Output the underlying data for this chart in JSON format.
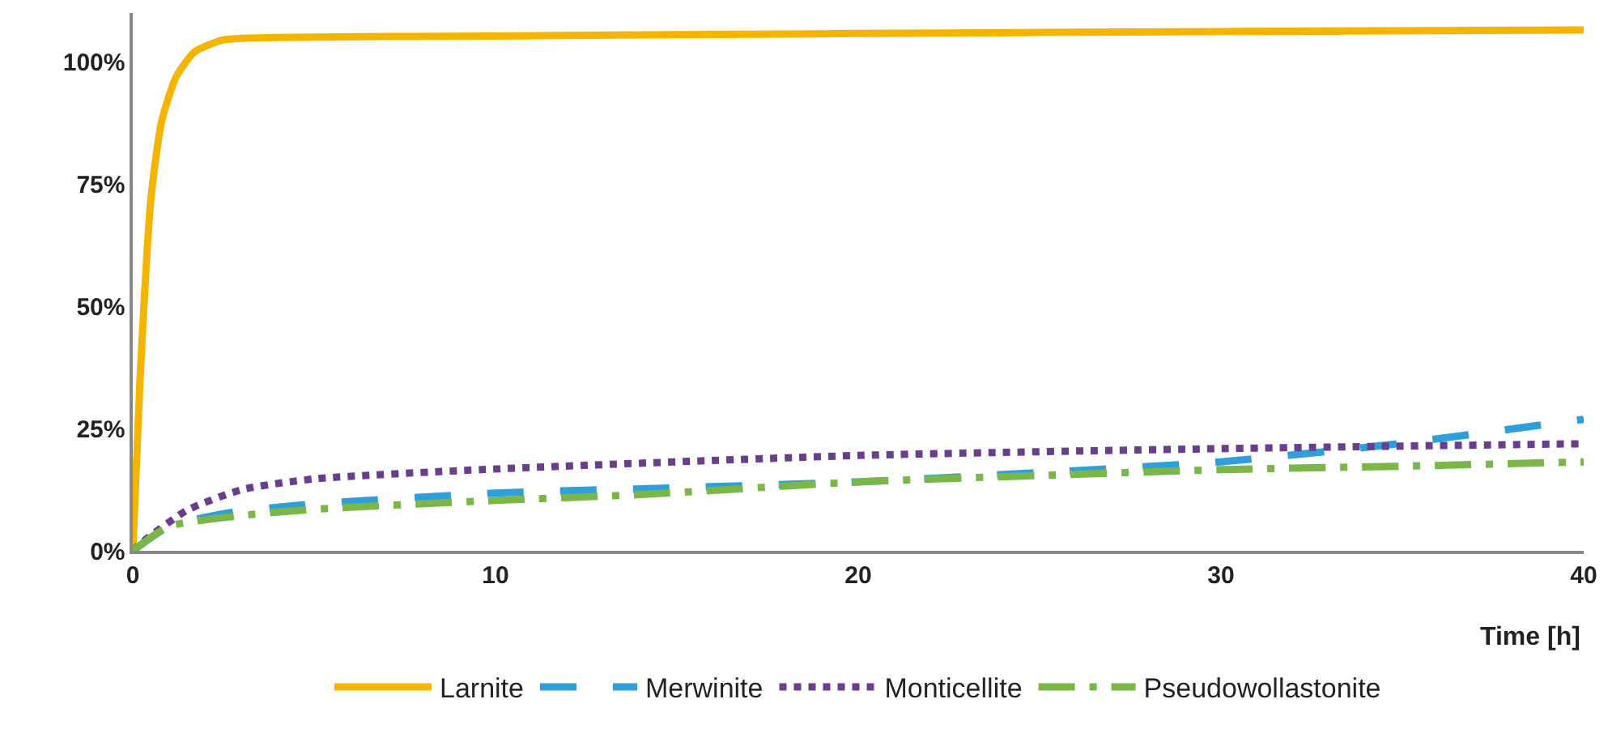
{
  "chart_data": {
    "type": "line",
    "xlabel": "Time [h]",
    "xlim": [
      0,
      40
    ],
    "xticks": [
      0,
      10,
      20,
      30,
      40
    ],
    "ylim": [
      0,
      110
    ],
    "yticks": [
      {
        "value": 0,
        "label": "0%"
      },
      {
        "value": 25,
        "label": "25%"
      },
      {
        "value": 50,
        "label": "50%"
      },
      {
        "value": 75,
        "label": "75%"
      },
      {
        "value": 100,
        "label": "100%"
      }
    ],
    "grid": false,
    "legend": "bottom",
    "marker": "none",
    "series": [
      {
        "name": "Larnite",
        "color": "#f5b400",
        "line_style": "solid",
        "x": [
          0,
          0.2,
          0.5,
          0.8,
          1.2,
          1.7,
          2.5,
          4,
          10,
          20,
          30,
          40
        ],
        "values": [
          0,
          35,
          72,
          88,
          97,
          102,
          104.5,
          105,
          105.3,
          105.8,
          106.2,
          106.5
        ]
      },
      {
        "name": "Merwinite",
        "color": "#2e9fd8",
        "line_style": "dashed",
        "x": [
          0,
          1,
          2.6,
          4.5,
          10,
          15,
          20,
          25,
          30,
          35,
          40
        ],
        "values": [
          0,
          5,
          7.7,
          9.3,
          11.8,
          12.9,
          14.1,
          16,
          18.2,
          22,
          26.9
        ]
      },
      {
        "name": "Monticellite",
        "color": "#6a3d8f",
        "line_style": "dotted",
        "x": [
          0,
          0.3,
          1.5,
          3,
          5,
          9.6,
          20,
          30,
          40
        ],
        "values": [
          0,
          2,
          8.3,
          12.5,
          14.7,
          16.6,
          19.5,
          20.9,
          21.9
        ]
      },
      {
        "name": "Pseudowollastonite",
        "color": "#7ab648",
        "line_style": "dashdot",
        "x": [
          0,
          1,
          3,
          5,
          10,
          14,
          20,
          25,
          30,
          35,
          40
        ],
        "values": [
          0,
          5,
          7.2,
          8.5,
          10.3,
          11.5,
          14.1,
          15.4,
          16.6,
          17.3,
          18.2
        ]
      }
    ]
  }
}
